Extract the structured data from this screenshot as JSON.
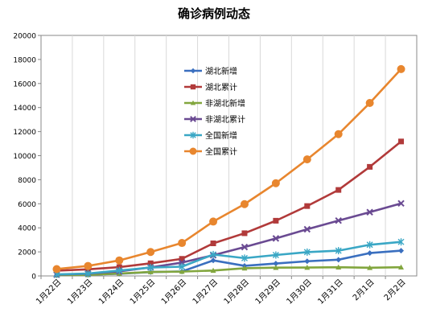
{
  "chart_data": {
    "type": "line",
    "title": "确诊病例动态",
    "xlabel": "",
    "ylabel": "",
    "ylim": [
      0,
      20000
    ],
    "yticks": [
      0,
      2000,
      4000,
      6000,
      8000,
      10000,
      12000,
      14000,
      16000,
      18000,
      20000
    ],
    "grid": "vertical",
    "legend_position": "inside-center-left",
    "categories": [
      "1月22日",
      "1月23日",
      "1月24日",
      "1月25日",
      "1月26日",
      "1月27日",
      "1月28日",
      "1月29日",
      "1月30日",
      "1月31日",
      "2月1日",
      "2月2日"
    ],
    "series": [
      {
        "name": "湖北新增",
        "color": "#3a6fbf",
        "marker": "diamond",
        "values": [
          70,
          100,
          180,
          320,
          370,
          1290,
          840,
          1030,
          1220,
          1350,
          1900,
          2100
        ]
      },
      {
        "name": "湖北累计",
        "color": "#b13a3a",
        "marker": "square",
        "values": [
          440,
          550,
          730,
          1050,
          1420,
          2710,
          3550,
          4590,
          5810,
          7150,
          9070,
          11180
        ]
      },
      {
        "name": "非湖北新增",
        "color": "#82a63e",
        "marker": "triangle",
        "values": [
          60,
          90,
          200,
          330,
          360,
          450,
          640,
          690,
          700,
          720,
          680,
          720
        ]
      },
      {
        "name": "非湖北累计",
        "color": "#6a4a92",
        "marker": "x",
        "values": [
          100,
          190,
          380,
          710,
          1110,
          1720,
          2400,
          3120,
          3880,
          4600,
          5300,
          6030
        ]
      },
      {
        "name": "全国新增",
        "color": "#3aa7c5",
        "marker": "asterisk",
        "values": [
          130,
          200,
          450,
          700,
          770,
          1780,
          1480,
          1740,
          1980,
          2100,
          2590,
          2830
        ]
      },
      {
        "name": "全国累计",
        "color": "#e8862e",
        "marker": "circle",
        "values": [
          570,
          830,
          1290,
          1990,
          2740,
          4520,
          5970,
          7710,
          9690,
          11790,
          14380,
          17200
        ]
      }
    ]
  }
}
